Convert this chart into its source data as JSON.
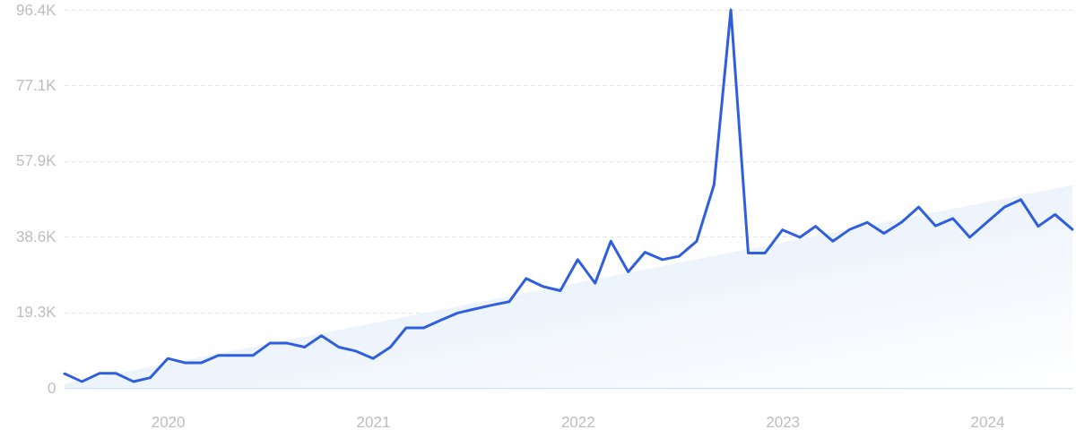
{
  "chart_data": {
    "type": "line",
    "x": [
      "2019-07",
      "2019-08",
      "2019-09",
      "2019-10",
      "2019-11",
      "2019-12",
      "2020-01",
      "2020-02",
      "2020-03",
      "2020-04",
      "2020-05",
      "2020-06",
      "2020-07",
      "2020-08",
      "2020-09",
      "2020-10",
      "2020-11",
      "2020-12",
      "2021-01",
      "2021-02",
      "2021-03",
      "2021-04",
      "2021-05",
      "2021-06",
      "2021-07",
      "2021-08",
      "2021-09",
      "2021-10",
      "2021-11",
      "2021-12",
      "2022-01",
      "2022-02",
      "2022-03",
      "2022-04",
      "2022-05",
      "2022-06",
      "2022-07",
      "2022-08",
      "2022-09",
      "2022-10",
      "2022-11",
      "2022-12",
      "2023-01",
      "2023-02",
      "2023-03",
      "2023-04",
      "2023-05",
      "2023-06",
      "2023-07",
      "2023-08",
      "2023-09",
      "2023-10",
      "2023-11",
      "2023-12",
      "2024-01",
      "2024-02",
      "2024-03",
      "2024-04",
      "2024-05",
      "2024-06"
    ],
    "series": [
      {
        "type": "area",
        "color": "#dce8f9",
        "x": [
          "2019-07",
          "2024-06"
        ],
        "values": [
          1000,
          51700
        ]
      },
      {
        "color": "#2f5fdc",
        "values": [
          3600,
          1600,
          3700,
          3700,
          1600,
          2600,
          7500,
          6400,
          6400,
          8300,
          8300,
          8300,
          11400,
          11400,
          10400,
          13300,
          10400,
          9400,
          7500,
          10400,
          15300,
          15300,
          17200,
          19100,
          20100,
          21100,
          22000,
          27900,
          25800,
          24800,
          32700,
          26700,
          37400,
          29600,
          34600,
          32700,
          33600,
          37400,
          51800,
          96400,
          34400,
          34400,
          40300,
          38400,
          41200,
          37400,
          40400,
          42200,
          39400,
          42200,
          46100,
          41300,
          43200,
          38400,
          42300,
          46100,
          48000,
          41200,
          44200,
          40400
        ]
      }
    ],
    "xlim": [
      "2019-07",
      "2024-06"
    ],
    "xticks": [
      "2020",
      "2021",
      "2022",
      "2023",
      "2024"
    ],
    "ylim": [
      0,
      96400
    ],
    "yticks": [
      0,
      {
        "value": 19300,
        "label": "19.3K"
      },
      {
        "value": 38600,
        "label": "38.6K"
      },
      {
        "value": 57900,
        "label": "57.9K"
      },
      {
        "value": 77100,
        "label": "77.1K"
      },
      {
        "value": 96400,
        "label": "96.4K"
      }
    ],
    "grid": "y"
  }
}
